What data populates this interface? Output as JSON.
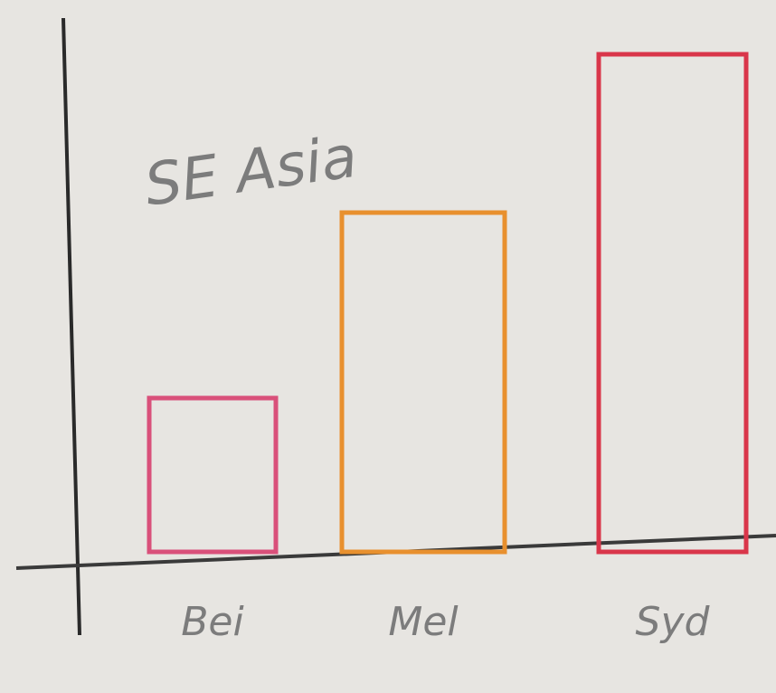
{
  "chart_data": {
    "type": "bar",
    "title": "SE Asia",
    "categories": [
      "Bei",
      "Mel",
      "Syd"
    ],
    "values": [
      170,
      375,
      550
    ],
    "colors": [
      "#d9507a",
      "#e8902e",
      "#d9364a"
    ],
    "ylim": [
      0,
      600
    ]
  }
}
